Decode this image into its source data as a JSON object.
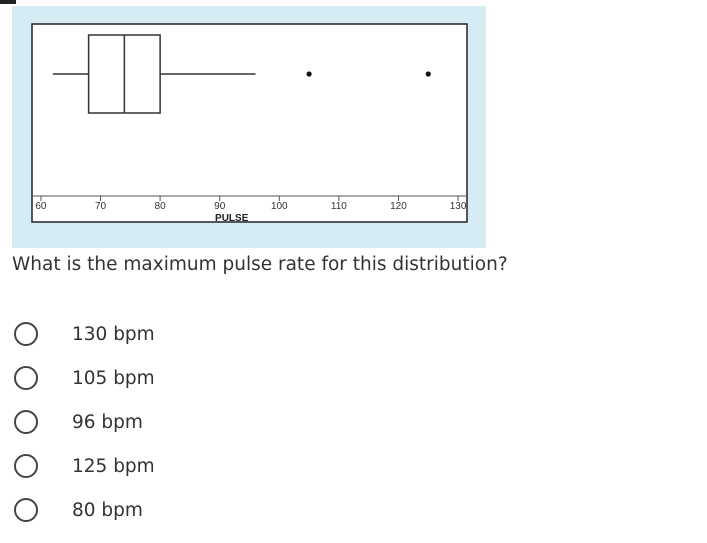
{
  "chart_data": {
    "type": "boxplot",
    "xlabel": "PULSE",
    "xlim": [
      58.5,
      131.5
    ],
    "ticks": [
      60,
      70,
      80,
      90,
      100,
      110,
      120,
      130
    ],
    "box": {
      "whisker_low": 62,
      "q1": 68,
      "median": 74,
      "q3": 80,
      "whisker_high": 96
    },
    "outliers": [
      105,
      125
    ],
    "grid": false
  },
  "question": {
    "text": "What is the maximum pulse rate for this distribution?"
  },
  "options": [
    {
      "label": "130 bpm"
    },
    {
      "label": "105 bpm"
    },
    {
      "label": "96 bpm"
    },
    {
      "label": "125 bpm"
    },
    {
      "label": "80 bpm"
    }
  ]
}
